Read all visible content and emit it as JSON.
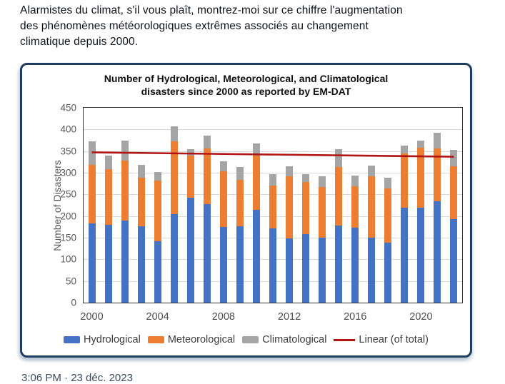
{
  "post": {
    "text": "Alarmistes du climat, s'il vous plaît, montrez-moi sur ce chiffre l'augmentation des phénomènes météorologiques extrêmes associés au changement climatique depuis 2000.",
    "timestamp_partial": "3:06 PM · 23 déc. 2023"
  },
  "chart_data": {
    "type": "bar",
    "stacked": true,
    "title": "Number of Hydrological, Meteorological, and Climatological disasters since 2000 as reported by EM-DAT",
    "title_lines": [
      "Number of Hydrological, Meteorological, and Climatological",
      "disasters since 2000 as reported by EM-DAT"
    ],
    "ylabel": "Number of Disasters",
    "xlabel": "",
    "ylim": [
      0,
      450
    ],
    "yticks": [
      0,
      50,
      100,
      150,
      200,
      250,
      300,
      350,
      400,
      450
    ],
    "grid": true,
    "legend_position": "bottom",
    "categories": [
      2000,
      2001,
      2002,
      2003,
      2004,
      2005,
      2006,
      2007,
      2008,
      2009,
      2010,
      2011,
      2012,
      2013,
      2014,
      2015,
      2016,
      2017,
      2018,
      2019,
      2020,
      2021,
      2022
    ],
    "xticks_shown": [
      2000,
      2004,
      2008,
      2012,
      2016,
      2020
    ],
    "series": [
      {
        "name": "Hydrological",
        "color": "#4472C4",
        "values": [
          183,
          180,
          190,
          176,
          142,
          204,
          243,
          227,
          174,
          177,
          215,
          171,
          148,
          159,
          150,
          178,
          173,
          150,
          139,
          219,
          219,
          234,
          193
        ]
      },
      {
        "name": "Meteorological",
        "color": "#ED7D31",
        "values": [
          135,
          129,
          138,
          113,
          140,
          169,
          97,
          129,
          130,
          107,
          124,
          99,
          143,
          119,
          117,
          136,
          96,
          142,
          124,
          125,
          138,
          122,
          122
        ]
      },
      {
        "name": "Climatological",
        "color": "#A5A5A5",
        "values": [
          54,
          31,
          47,
          29,
          19,
          34,
          14,
          29,
          22,
          29,
          29,
          26,
          24,
          19,
          24,
          40,
          25,
          25,
          25,
          18,
          17,
          37,
          37
        ]
      }
    ],
    "trend": {
      "name": "Linear (of total)",
      "color": "#B01513",
      "start_value": 347,
      "end_value": 337
    },
    "colors": {
      "card_border": "#1F3C61",
      "plot_frame": "#333333",
      "gridline": "#D9D9D9",
      "tick_text": "#595959"
    }
  }
}
